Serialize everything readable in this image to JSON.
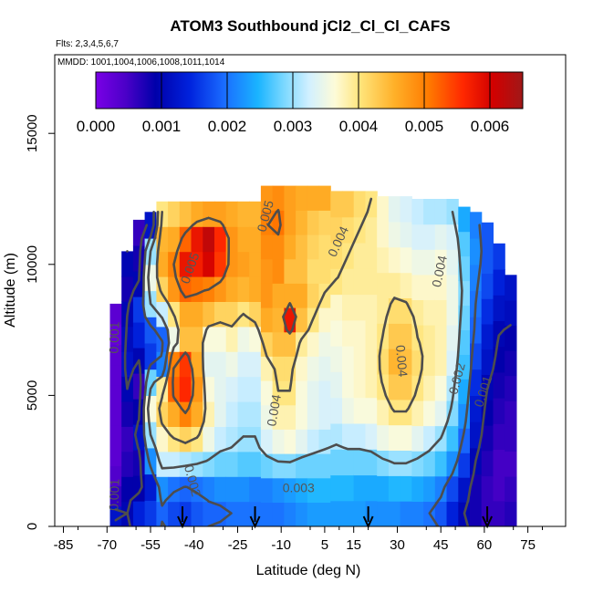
{
  "chart_data": {
    "type": "heatmap",
    "title": "ATOM3 Southbound jCl2_Cl_Cl_CAFS",
    "flights_note": "Flts: 2,3,4,5,6,7",
    "dates_note": "MMDD: 1001,1004,1006,1008,1011,1014",
    "xlabel": "Latitude (deg N)",
    "ylabel": "Altitude (m)",
    "xlim": [
      -88,
      88
    ],
    "ylim": [
      0,
      18000
    ],
    "x_ticks": [
      -85,
      -70,
      -55,
      -40,
      -25,
      -10,
      5,
      15,
      30,
      45,
      60,
      75
    ],
    "y_ticks": [
      0,
      5000,
      10000,
      15000
    ],
    "colorbar": {
      "ticks": [
        "0.000",
        "0.001",
        "0.002",
        "0.003",
        "0.004",
        "0.005",
        "0.006"
      ],
      "range": [
        0,
        0.0065
      ]
    },
    "contour_levels": [
      0.001,
      0.002,
      0.003,
      0.004,
      0.005
    ],
    "contour_labels": [
      {
        "text": "0.005",
        "lat": -14,
        "alt": 11800,
        "angle": -75
      },
      {
        "text": "0.004",
        "lat": 11,
        "alt": 10800,
        "angle": -65
      },
      {
        "text": "0.004",
        "lat": 46,
        "alt": 9700,
        "angle": -78
      },
      {
        "text": "0.004",
        "lat": 30,
        "alt": 6300,
        "angle": 85
      },
      {
        "text": "0.005",
        "lat": -40,
        "alt": 9800,
        "angle": -70
      },
      {
        "text": "0.004",
        "lat": -11,
        "alt": 4400,
        "angle": -80
      },
      {
        "text": "0.003",
        "lat": -4,
        "alt": 1300,
        "angle": 0
      },
      {
        "text": "0.002",
        "lat": -42,
        "alt": 1700,
        "angle": 75
      },
      {
        "text": "0.002",
        "lat": 52,
        "alt": 5600,
        "angle": -75
      },
      {
        "text": "0.001",
        "lat": 61,
        "alt": 5100,
        "angle": -72
      },
      {
        "text": "0.001",
        "lat": -66,
        "alt": 1200,
        "angle": -88
      },
      {
        "text": "0.001",
        "lat": -66,
        "alt": 7200,
        "angle": -88
      }
    ],
    "flight_markers_lat": [
      -44,
      -19,
      20,
      61
    ],
    "profiles": [
      {
        "lat": -67,
        "top": 8500,
        "values": [
          0.0012,
          0.0006,
          0.0004,
          0.0003,
          0.0003,
          0.0003,
          0.0003,
          0.0003,
          0.0003,
          0.0002,
          0.0003
        ]
      },
      {
        "lat": -63,
        "top": 10500,
        "values": [
          0.001,
          0.0009,
          0.0007,
          0.0006,
          0.0008,
          0.001,
          0.0012,
          0.0011,
          0.001,
          0.0008,
          0.001
        ]
      },
      {
        "lat": -59,
        "top": 11700,
        "values": [
          0.0014,
          0.0009,
          0.0008,
          0.0012,
          0.0009,
          0.0006,
          0.001,
          0.0014,
          0.0016,
          0.001,
          0.0008,
          0.0006
        ]
      },
      {
        "lat": -55,
        "top": 12000,
        "values": [
          0.0016,
          0.0013,
          0.0022,
          0.003,
          0.0036,
          0.0028,
          0.0016,
          0.0018,
          0.003,
          0.0035,
          0.003,
          0.0012
        ]
      },
      {
        "lat": -51,
        "top": 12400,
        "values": [
          0.0019,
          0.0022,
          0.0032,
          0.0037,
          0.0042,
          0.0039,
          0.0021,
          0.0019,
          0.0032,
          0.0042,
          0.0046,
          0.0045,
          0.004
        ]
      },
      {
        "lat": -47,
        "top": 12400,
        "values": [
          0.0017,
          0.002,
          0.0032,
          0.004,
          0.0046,
          0.0052,
          0.005,
          0.0035,
          0.004,
          0.0048,
          0.005,
          0.0046,
          0.0042
        ]
      },
      {
        "lat": -43,
        "top": 12400,
        "values": [
          0.0016,
          0.0019,
          0.0031,
          0.0042,
          0.005,
          0.0056,
          0.0055,
          0.0044,
          0.0046,
          0.0052,
          0.0058,
          0.0052,
          0.0044
        ]
      },
      {
        "lat": -39,
        "top": 12400,
        "values": [
          0.0018,
          0.002,
          0.003,
          0.004,
          0.0046,
          0.0048,
          0.0046,
          0.0044,
          0.0046,
          0.0051,
          0.0057,
          0.0058,
          0.0046
        ]
      },
      {
        "lat": -35,
        "top": 12400,
        "values": [
          0.0019,
          0.0021,
          0.0029,
          0.0035,
          0.0038,
          0.0036,
          0.0034,
          0.0036,
          0.0044,
          0.005,
          0.006,
          0.0062,
          0.0047
        ]
      },
      {
        "lat": -31,
        "top": 12400,
        "values": [
          0.0019,
          0.0022,
          0.0028,
          0.0032,
          0.0034,
          0.0034,
          0.0034,
          0.0036,
          0.0042,
          0.0048,
          0.0055,
          0.0056,
          0.0047
        ]
      },
      {
        "lat": -27,
        "top": 12400,
        "values": [
          0.002,
          0.0022,
          0.0028,
          0.0031,
          0.0032,
          0.0033,
          0.0035,
          0.0038,
          0.0042,
          0.0046,
          0.0048,
          0.0048,
          0.0046
        ]
      },
      {
        "lat": -23,
        "top": 12400,
        "values": [
          0.002,
          0.0022,
          0.0027,
          0.003,
          0.0031,
          0.0032,
          0.0033,
          0.0035,
          0.004,
          0.0045,
          0.0047,
          0.0046,
          0.0045
        ]
      },
      {
        "lat": -19,
        "top": 12400,
        "values": [
          0.002,
          0.0021,
          0.0027,
          0.003,
          0.0031,
          0.0032,
          0.0033,
          0.0036,
          0.0042,
          0.0046,
          0.0046,
          0.0046,
          0.0045
        ]
      },
      {
        "lat": -15,
        "top": 13000,
        "values": [
          0.002,
          0.0021,
          0.0028,
          0.0033,
          0.0035,
          0.0036,
          0.0038,
          0.0042,
          0.0046,
          0.0048,
          0.0048,
          0.0049,
          0.005,
          0.0048
        ]
      },
      {
        "lat": -11,
        "top": 13000,
        "values": [
          0.002,
          0.0022,
          0.0029,
          0.0035,
          0.0038,
          0.004,
          0.0041,
          0.0044,
          0.0045,
          0.0046,
          0.0049,
          0.0049,
          0.0051,
          0.0049
        ]
      },
      {
        "lat": -7,
        "top": 13000,
        "values": [
          0.0021,
          0.0023,
          0.0029,
          0.0036,
          0.0038,
          0.004,
          0.0041,
          0.0044,
          0.0058,
          0.0046,
          0.0044,
          0.0046,
          0.0047,
          0.0047
        ]
      },
      {
        "lat": -3,
        "top": 13000,
        "values": [
          0.0022,
          0.0024,
          0.0028,
          0.0034,
          0.0036,
          0.0036,
          0.0037,
          0.0039,
          0.0044,
          0.0046,
          0.0044,
          0.0044,
          0.0045,
          0.0046
        ]
      },
      {
        "lat": 1,
        "top": 13000,
        "values": [
          0.0023,
          0.0025,
          0.0028,
          0.0032,
          0.0034,
          0.0034,
          0.0035,
          0.0037,
          0.004,
          0.0042,
          0.0041,
          0.0042,
          0.0043,
          0.0046
        ]
      },
      {
        "lat": 5,
        "top": 13000,
        "values": [
          0.0023,
          0.0025,
          0.0028,
          0.0031,
          0.0033,
          0.0033,
          0.0034,
          0.0035,
          0.0037,
          0.004,
          0.0041,
          0.0041,
          0.0042,
          0.0046
        ]
      },
      {
        "lat": 9,
        "top": 12800,
        "values": [
          0.0023,
          0.0025,
          0.0028,
          0.0031,
          0.0033,
          0.0034,
          0.0035,
          0.0036,
          0.0037,
          0.004,
          0.0041,
          0.0042,
          0.0043
        ]
      },
      {
        "lat": 13,
        "top": 12800,
        "values": [
          0.0023,
          0.0025,
          0.0028,
          0.0032,
          0.0035,
          0.0036,
          0.0036,
          0.0037,
          0.0038,
          0.0039,
          0.004,
          0.0041,
          0.0043
        ]
      },
      {
        "lat": 17,
        "top": 12800,
        "values": [
          0.0023,
          0.0024,
          0.0028,
          0.0032,
          0.0036,
          0.0037,
          0.0037,
          0.0037,
          0.0038,
          0.0039,
          0.0039,
          0.004,
          0.0041
        ]
      },
      {
        "lat": 21,
        "top": 12800,
        "values": [
          0.0022,
          0.0024,
          0.0028,
          0.0033,
          0.0036,
          0.0038,
          0.0038,
          0.0038,
          0.0038,
          0.0039,
          0.0039,
          0.0039,
          0.004
        ]
      },
      {
        "lat": 25,
        "top": 12600,
        "values": [
          0.0022,
          0.0024,
          0.0029,
          0.0035,
          0.0038,
          0.004,
          0.0041,
          0.004,
          0.0039,
          0.0039,
          0.0038,
          0.0037,
          0.0037
        ]
      },
      {
        "lat": 29,
        "top": 12600,
        "values": [
          0.0022,
          0.0025,
          0.003,
          0.0036,
          0.004,
          0.0043,
          0.0045,
          0.0043,
          0.0041,
          0.0039,
          0.0037,
          0.0035,
          0.0034
        ]
      },
      {
        "lat": 33,
        "top": 12600,
        "values": [
          0.0021,
          0.0025,
          0.003,
          0.0036,
          0.004,
          0.0043,
          0.0044,
          0.0043,
          0.0041,
          0.0038,
          0.0036,
          0.0034,
          0.0033
        ]
      },
      {
        "lat": 37,
        "top": 12500,
        "values": [
          0.0021,
          0.0024,
          0.0029,
          0.0034,
          0.0038,
          0.004,
          0.0041,
          0.004,
          0.0039,
          0.0037,
          0.0035,
          0.0033,
          0.0032
        ]
      },
      {
        "lat": 41,
        "top": 12500,
        "values": [
          0.002,
          0.0023,
          0.0028,
          0.0032,
          0.0036,
          0.0038,
          0.0039,
          0.0039,
          0.0038,
          0.0037,
          0.0035,
          0.0033,
          0.0031
        ]
      },
      {
        "lat": 45,
        "top": 12500,
        "values": [
          0.0018,
          0.0021,
          0.0026,
          0.003,
          0.0034,
          0.0036,
          0.0038,
          0.0038,
          0.0038,
          0.0037,
          0.0036,
          0.0034,
          0.0031
        ]
      },
      {
        "lat": 49,
        "top": 12500,
        "values": [
          0.0014,
          0.0017,
          0.0022,
          0.0026,
          0.0029,
          0.0031,
          0.0033,
          0.0034,
          0.0035,
          0.0035,
          0.0034,
          0.0033,
          0.003
        ]
      },
      {
        "lat": 53,
        "top": 12200,
        "values": [
          0.001,
          0.0012,
          0.0016,
          0.0019,
          0.0022,
          0.0024,
          0.0026,
          0.0027,
          0.0028,
          0.0029,
          0.0028,
          0.0027,
          0.0024
        ]
      },
      {
        "lat": 57,
        "top": 12000,
        "values": [
          0.0008,
          0.0008,
          0.001,
          0.0012,
          0.0013,
          0.0015,
          0.0017,
          0.0019,
          0.002,
          0.0021,
          0.0022,
          0.0021
        ]
      },
      {
        "lat": 61,
        "top": 11600,
        "values": [
          0.0006,
          0.0006,
          0.0007,
          0.0008,
          0.0009,
          0.001,
          0.0012,
          0.0013,
          0.0015,
          0.0017,
          0.0018,
          0.0018
        ]
      },
      {
        "lat": 65,
        "top": 10800,
        "values": [
          0.0006,
          0.0005,
          0.0005,
          0.0006,
          0.0007,
          0.0008,
          0.0009,
          0.001,
          0.0012,
          0.0014,
          0.0016
        ]
      },
      {
        "lat": 69,
        "top": 9600,
        "values": [
          0.0007,
          0.0006,
          0.0005,
          0.0006,
          0.0006,
          0.0007,
          0.0008,
          0.0009,
          0.0011,
          0.0012
        ]
      }
    ]
  }
}
